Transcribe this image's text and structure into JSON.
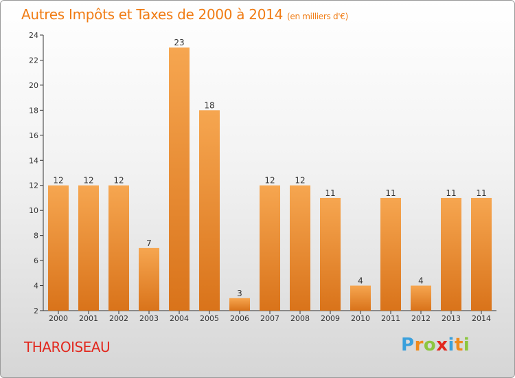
{
  "title": "Autres Impôts et Taxes de 2000 à 2014",
  "unit": "(en milliers d'€)",
  "place": "THAROISEAU",
  "logo": {
    "text": "Proxiti",
    "letters": [
      "P",
      "r",
      "o",
      "x",
      "i",
      "t",
      "i"
    ],
    "colors": [
      "#3aa0dc",
      "#f08a1c",
      "#8cc63f",
      "#e2281e",
      "#3aa0dc",
      "#f08a1c",
      "#8cc63f"
    ]
  },
  "colors": {
    "bar_light": "#f6a650",
    "bar_dark": "#d9731a",
    "title": "#f07c14",
    "place": "#e2281e"
  },
  "chart_data": {
    "type": "bar",
    "title": "Autres Impôts et Taxes de 2000 à 2014",
    "subtitle": "(en milliers d'€)",
    "categories": [
      "2000",
      "2001",
      "2002",
      "2003",
      "2004",
      "2005",
      "2006",
      "2007",
      "2008",
      "2009",
      "2010",
      "2011",
      "2012",
      "2013",
      "2014"
    ],
    "values": [
      12,
      12,
      12,
      7,
      23,
      18,
      3,
      12,
      12,
      11,
      4,
      11,
      4,
      11,
      11
    ],
    "ylim": [
      2,
      24
    ],
    "yticks": [
      2,
      4,
      6,
      8,
      10,
      12,
      14,
      16,
      18,
      20,
      22,
      24
    ],
    "grid": false,
    "xlabel": "",
    "ylabel": ""
  }
}
